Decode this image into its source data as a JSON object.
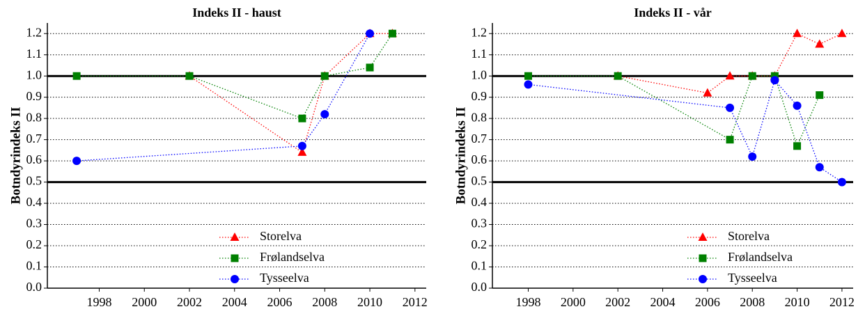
{
  "chart_data": [
    {
      "type": "line",
      "title": "Indeks II - haust",
      "y_label": "Botndyrindeks II",
      "xlim": [
        1995.7,
        2012.5
      ],
      "xticks": [
        1998,
        2000,
        2002,
        2004,
        2006,
        2008,
        2010,
        2012
      ],
      "ylim": [
        0,
        1.25
      ],
      "yticks": [
        {
          "value": 0,
          "label": "0.0"
        },
        0.1,
        0.2,
        0.3,
        0.4,
        0.5,
        0.6,
        0.7,
        0.8,
        0.9,
        {
          "value": 1,
          "label": "1.0"
        },
        1.1,
        1.2
      ],
      "grid": true,
      "hlines": [
        0.5,
        1.0
      ],
      "legend": "bottom",
      "series": [
        {
          "name": "Storelva",
          "color": "#ff0000",
          "marker": "triangle",
          "x": [
            2002,
            2007,
            2008,
            2010,
            2011
          ],
          "values": [
            1.0,
            0.64,
            1.0,
            1.2,
            1.2
          ]
        },
        {
          "name": "Frølandselva",
          "color": "#008000",
          "marker": "square",
          "x": [
            1997,
            2002,
            2007,
            2008,
            2010,
            2011
          ],
          "values": [
            1.0,
            1.0,
            0.8,
            1.0,
            1.04,
            1.2
          ]
        },
        {
          "name": "Tysseelva",
          "color": "#0000ff",
          "marker": "circle",
          "x": [
            1997,
            2007,
            2008,
            2010
          ],
          "values": [
            0.6,
            0.67,
            0.82,
            1.2
          ]
        }
      ]
    },
    {
      "type": "line",
      "title": "Indeks II - vår",
      "y_label": "Botndyrindeks II",
      "xlim": [
        1996.4,
        2012.5
      ],
      "xticks": [
        1998,
        2000,
        2002,
        2004,
        2006,
        2008,
        2010,
        2012
      ],
      "ylim": [
        0,
        1.25
      ],
      "yticks": [
        {
          "value": 0,
          "label": "0.0"
        },
        0.1,
        0.2,
        0.3,
        0.4,
        0.5,
        0.6,
        0.7,
        0.8,
        0.9,
        {
          "value": 1,
          "label": "1.0"
        },
        1.1,
        1.2
      ],
      "grid": true,
      "hlines": [
        0.5,
        1.0
      ],
      "legend": "bottom",
      "series": [
        {
          "name": "Storelva",
          "color": "#ff0000",
          "marker": "triangle",
          "x": [
            2002,
            2006,
            2007,
            2008,
            2009,
            2010,
            2011,
            2012
          ],
          "values": [
            1.0,
            0.92,
            1.0,
            1.0,
            1.0,
            1.2,
            1.15,
            1.2
          ]
        },
        {
          "name": "Frølandselva",
          "color": "#008000",
          "marker": "square",
          "x": [
            1998,
            2002,
            2007,
            2008,
            2009,
            2010,
            2011
          ],
          "values": [
            1.0,
            1.0,
            0.7,
            1.0,
            1.0,
            0.67,
            0.91
          ]
        },
        {
          "name": "Tysseelva",
          "color": "#0000ff",
          "marker": "circle",
          "x": [
            1998,
            2007,
            2008,
            2009,
            2010,
            2011,
            2012
          ],
          "values": [
            0.96,
            0.85,
            0.62,
            0.98,
            0.86,
            0.57,
            0.5
          ]
        }
      ]
    }
  ]
}
